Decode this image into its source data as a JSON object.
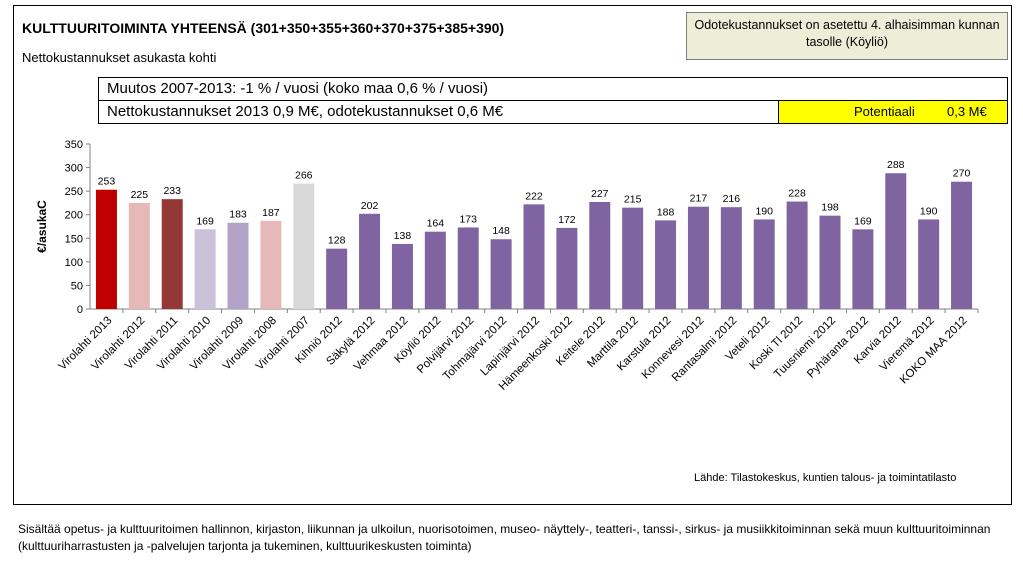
{
  "header": {
    "title": "KULTTUURITOIMINTA YHTEENSÄ (301+350+355+360+370+375+385+390)",
    "subtitle": "Nettokustannukset asukasta kohti",
    "note": "Odotekustannukset on asetettu 4. alhaisimman kunnan tasolle (Köyliö)"
  },
  "info": {
    "change": "Muutos 2007-2013: -1 % / vuosi (koko maa 0,6 % / vuosi)",
    "costs": "Nettokustannukset 2013 0,9 M€, odotekustannukset 0,6 M€",
    "potential_label": "Potentiaali",
    "potential_value": "0,3 M€"
  },
  "chart_data": {
    "type": "bar",
    "ylabel": "€/asukaC",
    "ylim": [
      0,
      350
    ],
    "yticks": [
      0,
      50,
      100,
      150,
      200,
      250,
      300,
      350
    ],
    "grid": false,
    "categories": [
      "Virolahti 2013",
      "Virolahti 2012",
      "Virolahti 2011",
      "Virolahti 2010",
      "Virolahti 2009",
      "Virolahti 2008",
      "Virolahti 2007",
      "Kihniö 2012",
      "Säkylä 2012",
      "Vehmaa 2012",
      "Köyliö 2012",
      "Polvijärvi 2012",
      "Tohmajärvi 2012",
      "Lapinjärvi 2012",
      "Hämeenkoski 2012",
      "Keitele 2012",
      "Marttila 2012",
      "Karstula 2012",
      "Konnevesi 2012",
      "Rantasalmi 2012",
      "Veteli 2012",
      "Koski Tl 2012",
      "Tuusniemi 2012",
      "Pyhäranta 2012",
      "Karvia 2012",
      "Vieremä 2012",
      "KOKO MAA 2012"
    ],
    "values": [
      253,
      225,
      233,
      169,
      183,
      187,
      266,
      128,
      202,
      138,
      164,
      173,
      148,
      222,
      172,
      227,
      215,
      188,
      217,
      216,
      190,
      228,
      198,
      169,
      288,
      190,
      270
    ],
    "colors": [
      "#c00000",
      "#e6b9b8",
      "#953735",
      "#ccc1da",
      "#b3a2c7",
      "#e6b9b8",
      "#d9d9d9",
      "#8064a2",
      "#8064a2",
      "#8064a2",
      "#8064a2",
      "#8064a2",
      "#8064a2",
      "#8064a2",
      "#8064a2",
      "#8064a2",
      "#8064a2",
      "#8064a2",
      "#8064a2",
      "#8064a2",
      "#8064a2",
      "#8064a2",
      "#8064a2",
      "#8064a2",
      "#8064a2",
      "#8064a2",
      "#8064a2"
    ]
  },
  "source": "Lähde: Tilastokeskus, kuntien talous- ja toimintatilasto",
  "footer": "Sisältää opetus- ja kulttuuritoimen hallinnon, kirjaston, liikunnan ja ulkoilun, nuorisotoimen, museo- näyttely-, teatteri-, tanssi-, sirkus- ja musiikkitoiminnan sekä muun kulttuuritoiminnan (kulttuuriharrastusten ja -palvelujen tarjonta ja tukeminen, kulttuurikeskusten toiminta)"
}
